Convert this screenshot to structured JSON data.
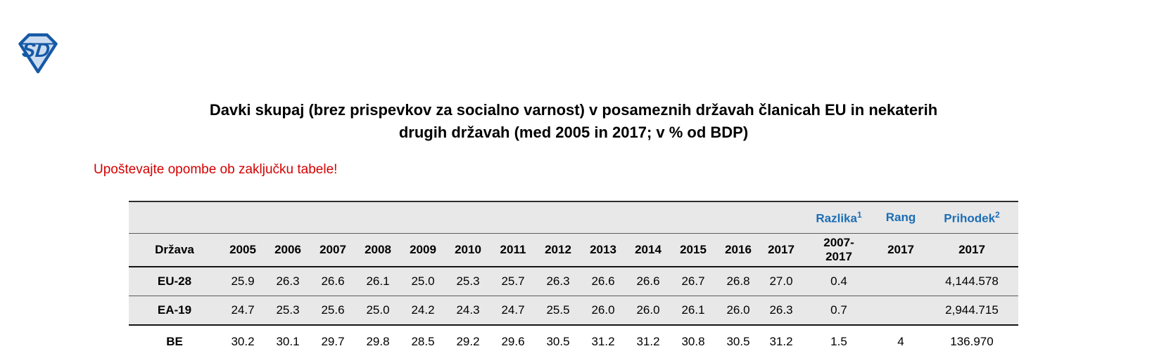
{
  "logo": {
    "monogram": "SD"
  },
  "title": {
    "line1": "Davki skupaj (brez prispevkov za socialno varnost) v posameznih državah članicah EU in nekaterih",
    "line2": "drugih državah (med 2005 in 2017; v % od BDP)"
  },
  "notice": "Upoštevajte opombe ob zaključku tabele!",
  "colors": {
    "accent_blue": "#1b6db5",
    "notice_red": "#d40000",
    "shaded_row_bg": "#e8e8e8",
    "logo_blue": "#1559a6",
    "logo_fill": "#ccdcf0"
  },
  "table": {
    "group_headers": [
      {
        "label": "Razlika",
        "sup": "1"
      },
      {
        "label": "Rang",
        "sup": ""
      },
      {
        "label": "Prihodek",
        "sup": "2"
      }
    ],
    "columns": {
      "country": "Država",
      "years": [
        "2005",
        "2006",
        "2007",
        "2008",
        "2009",
        "2010",
        "2011",
        "2012",
        "2013",
        "2014",
        "2015",
        "2016"
      ],
      "year_2017": "2017",
      "razlika_sub": "2007-2017",
      "rang_sub": "2017",
      "prihodek_sub": "2017"
    },
    "rows": [
      {
        "country": "EU-28",
        "values": [
          "25.9",
          "26.3",
          "26.6",
          "26.1",
          "25.0",
          "25.3",
          "25.7",
          "26.3",
          "26.6",
          "26.6",
          "26.7",
          "26.8",
          "27.0"
        ],
        "blue_value_indices": [
          9,
          12
        ],
        "razlika": "0.4",
        "rang": "",
        "prihodek": "4,144.578",
        "shaded": true
      },
      {
        "country": "EA-19",
        "values": [
          "24.7",
          "25.3",
          "25.6",
          "25.0",
          "24.2",
          "24.3",
          "24.7",
          "25.5",
          "26.0",
          "26.0",
          "26.1",
          "26.0",
          "26.3"
        ],
        "blue_value_indices": [
          5,
          9,
          11,
          12
        ],
        "razlika": "0.7",
        "rang": "",
        "prihodek": "2,944.715",
        "shaded": true
      },
      {
        "country": "BE",
        "values": [
          "30.2",
          "30.1",
          "29.7",
          "29.8",
          "28.5",
          "29.2",
          "29.6",
          "30.5",
          "31.2",
          "31.2",
          "30.8",
          "30.5",
          "31.2"
        ],
        "blue_value_indices": [
          11,
          12
        ],
        "razlika": "1.5",
        "rang": "4",
        "prihodek": "136.970",
        "shaded": false
      }
    ]
  }
}
